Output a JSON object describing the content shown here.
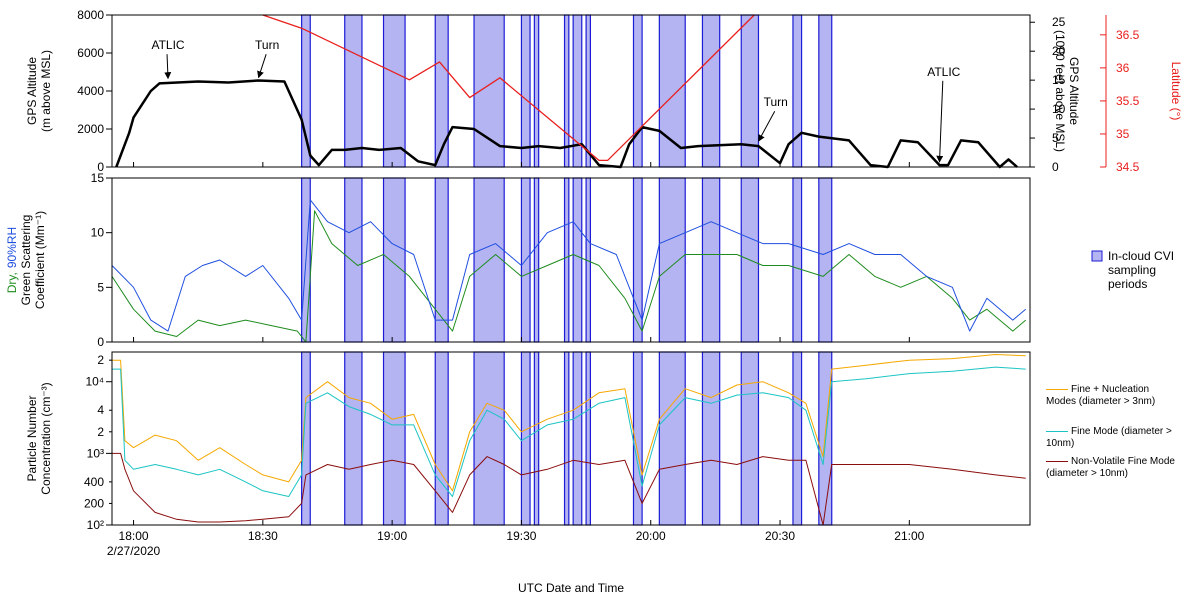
{
  "chart_data": [
    {
      "type": "line",
      "ylabel": [
        "GPS Altitude",
        "(m above MSL)"
      ],
      "ylim": [
        0,
        8000
      ],
      "yticks": [
        0,
        2000,
        4000,
        6000,
        8000
      ],
      "y2label": [
        "GPS Altitude",
        "(1000 feet above MSL)"
      ],
      "y2lim": [
        0,
        26.25
      ],
      "y2ticks": [
        0,
        5,
        10,
        15,
        20,
        25
      ],
      "y3label": "Latitude (°)",
      "y3color": "#e8201e",
      "y3lim": [
        34.5,
        36.8
      ],
      "y3ticks": [
        34.5,
        35.0,
        35.5,
        36.0,
        36.5
      ],
      "series": [
        {
          "name": "GPS Altitude",
          "color": "#000000",
          "x": [
            "17:56",
            "17:59",
            "18:00",
            "18:04",
            "18:06",
            "18:15",
            "18:22",
            "18:29",
            "18:35",
            "18:39",
            "18:41",
            "18:43",
            "18:46",
            "18:49",
            "18:53",
            "18:57",
            "19:02",
            "19:06",
            "19:10",
            "19:12",
            "19:14",
            "19:19",
            "19:25",
            "19:30",
            "19:34",
            "19:39",
            "19:44",
            "19:48",
            "19:53",
            "19:55",
            "19:58",
            "20:02",
            "20:07",
            "20:11",
            "20:21",
            "20:25",
            "20:30",
            "20:32",
            "20:35",
            "20:39",
            "20:46",
            "20:51",
            "20:55",
            "20:58",
            "21:02",
            "21:07",
            "21:09",
            "21:12",
            "21:16",
            "21:21",
            "21:23",
            "21:25"
          ],
          "values": [
            0,
            1800,
            2600,
            4000,
            4400,
            4500,
            4450,
            4550,
            4500,
            2500,
            600,
            100,
            900,
            900,
            1000,
            900,
            1000,
            300,
            100,
            1200,
            2100,
            2000,
            1100,
            1000,
            1100,
            1000,
            1200,
            100,
            0,
            1200,
            2100,
            1900,
            1000,
            1100,
            1200,
            1100,
            200,
            1200,
            1800,
            1600,
            1400,
            100,
            0,
            1400,
            1300,
            100,
            100,
            1400,
            1300,
            0,
            400,
            0
          ]
        },
        {
          "name": "Latitude",
          "color": "#e8201e",
          "axis": "y3",
          "x": [
            "18:30",
            "18:39",
            "19:04",
            "19:11",
            "19:18",
            "19:25",
            "19:48",
            "19:50",
            "20:24"
          ],
          "values": [
            36.8,
            36.6,
            35.82,
            36.09,
            35.55,
            35.85,
            34.6,
            34.6,
            36.8
          ]
        }
      ],
      "annotations": [
        {
          "text": "ATLIC",
          "x": "18:08",
          "y": 4500,
          "text_x": "18:08",
          "text_y": 6200
        },
        {
          "text": "Turn",
          "x": "18:29",
          "y": 4550,
          "text_x": "18:31",
          "text_y": 6200
        },
        {
          "text": "Turn",
          "x": "20:25",
          "y": 1200,
          "text_x": "20:29",
          "text_y": 3200
        },
        {
          "text": "ATLIC",
          "x": "21:07",
          "y": 100,
          "text_x": "21:08",
          "text_y": 4800
        }
      ],
      "shaded_periods": {
        "name": "In-cloud CVI sampling periods",
        "color": "#b4b4f2",
        "edge": "#1c1cd6",
        "periods": [
          [
            "18:39",
            "18:41"
          ],
          [
            "18:49",
            "18:53"
          ],
          [
            "18:58",
            "19:03"
          ],
          [
            "19:10",
            "19:13"
          ],
          [
            "19:19",
            "19:26"
          ],
          [
            "19:30",
            "19:32"
          ],
          [
            "19:33",
            "19:34"
          ],
          [
            "19:40",
            "19:41"
          ],
          [
            "19:42",
            "19:44"
          ],
          [
            "19:45",
            "19:46"
          ],
          [
            "19:56",
            "19:58"
          ],
          [
            "20:02",
            "20:08"
          ],
          [
            "20:12",
            "20:16"
          ],
          [
            "20:21",
            "20:25"
          ],
          [
            "20:33",
            "20:35"
          ],
          [
            "20:39",
            "20:42"
          ]
        ]
      }
    },
    {
      "type": "line",
      "ylabel": [
        "Green Scattering",
        "Coefficient (Mm⁻¹)"
      ],
      "ylim": [
        0,
        15
      ],
      "yticks": [
        0,
        5,
        10,
        15
      ],
      "series": [
        {
          "name": "Dry,",
          "color": "#1e8c1e",
          "x": [
            "17:55",
            "18:00",
            "18:05",
            "18:10",
            "18:15",
            "18:20",
            "18:26",
            "18:32",
            "18:38",
            "18:40",
            "18:42",
            "18:46",
            "18:52",
            "18:58",
            "19:04",
            "19:10",
            "19:14",
            "19:18",
            "19:24",
            "19:30",
            "19:36",
            "19:42",
            "19:48",
            "19:54",
            "19:58",
            "20:02",
            "20:08",
            "20:14",
            "20:20",
            "20:26",
            "20:32",
            "20:40",
            "20:46",
            "20:52",
            "20:58",
            "21:04",
            "21:10",
            "21:14",
            "21:18",
            "21:24",
            "21:27"
          ],
          "values": [
            6,
            3,
            1,
            0.5,
            2,
            1.5,
            2,
            1.5,
            1,
            0,
            12,
            9,
            7,
            8,
            6,
            3,
            1,
            6,
            8,
            6,
            7,
            8,
            7,
            4,
            1,
            6,
            8,
            8,
            8,
            7,
            7,
            6,
            8,
            6,
            5,
            6,
            4,
            2,
            3,
            1,
            2
          ]
        },
        {
          "name": "90%RH",
          "color": "#1f4fe0",
          "x": [
            "17:55",
            "18:00",
            "18:04",
            "18:08",
            "18:12",
            "18:16",
            "18:20",
            "18:26",
            "18:30",
            "18:36",
            "18:39",
            "18:41",
            "18:45",
            "18:50",
            "18:55",
            "19:00",
            "19:05",
            "19:10",
            "19:14",
            "19:18",
            "19:24",
            "19:30",
            "19:36",
            "19:42",
            "19:46",
            "19:52",
            "19:58",
            "20:02",
            "20:08",
            "20:14",
            "20:20",
            "20:26",
            "20:32",
            "20:40",
            "20:46",
            "20:52",
            "20:58",
            "21:04",
            "21:10",
            "21:14",
            "21:18",
            "21:24",
            "21:27"
          ],
          "values": [
            7,
            5,
            2,
            1,
            6,
            7,
            7.5,
            6,
            7,
            4,
            2,
            13,
            11,
            10,
            11,
            9,
            8,
            2,
            2,
            8,
            9,
            7,
            10,
            11,
            9,
            8,
            2,
            9,
            10,
            11,
            10,
            9,
            9,
            8,
            9,
            8,
            8,
            6,
            5,
            1,
            4,
            2,
            3
          ]
        }
      ]
    },
    {
      "type": "line",
      "log_y": true,
      "ylabel": [
        "Particle Number",
        "Concentration (cm⁻³)"
      ],
      "ylim": [
        100,
        26000
      ],
      "yticks": [
        {
          "value": 100,
          "label": "10²"
        },
        200,
        400,
        {
          "value": 1000,
          "label": "10³"
        },
        {
          "value": 2000,
          "label": "2"
        },
        {
          "value": 4000,
          "label": "4"
        },
        {
          "value": 10000,
          "label": "10⁴"
        },
        {
          "value": 20000,
          "label": "2"
        }
      ],
      "xlim": [
        "17:55",
        "21:28"
      ],
      "xticks": [
        "18:00",
        "18:30",
        "19:00",
        "19:30",
        "20:00",
        "20:30",
        "21:00"
      ],
      "date_label": "2/27/2020",
      "xlabel": "UTC Date and Time",
      "x": [
        "17:55",
        "17:57",
        "17:58",
        "18:00",
        "18:05",
        "18:10",
        "18:15",
        "18:20",
        "18:26",
        "18:30",
        "18:36",
        "18:39",
        "18:40",
        "18:45",
        "18:50",
        "18:55",
        "19:00",
        "19:05",
        "19:10",
        "19:14",
        "19:18",
        "19:22",
        "19:26",
        "19:30",
        "19:36",
        "19:42",
        "19:48",
        "19:54",
        "19:58",
        "20:02",
        "20:08",
        "20:14",
        "20:20",
        "20:26",
        "20:32",
        "20:36",
        "20:40",
        "20:42",
        "20:50",
        "21:00",
        "21:10",
        "21:20",
        "21:27"
      ],
      "series": [
        {
          "name": "Fine + Nucleation Modes (diameter > 3nm)",
          "color": "#f5a800",
          "values": [
            20000,
            20000,
            1500,
            1200,
            1800,
            1500,
            800,
            1200,
            700,
            500,
            400,
            800,
            6000,
            10000,
            6000,
            5000,
            3000,
            3500,
            700,
            300,
            2000,
            5000,
            4000,
            2000,
            3000,
            4000,
            7000,
            8000,
            500,
            3000,
            8000,
            6000,
            9000,
            10000,
            7000,
            5000,
            900,
            15000,
            17000,
            20000,
            21000,
            24000,
            23000
          ]
        },
        {
          "name": "Fine Mode (diameter > 10nm)",
          "color": "#1cc4c4",
          "values": [
            15000,
            15000,
            800,
            600,
            700,
            600,
            500,
            600,
            400,
            300,
            250,
            500,
            5000,
            7000,
            4500,
            3500,
            2500,
            2500,
            500,
            250,
            1500,
            4000,
            3000,
            1500,
            2500,
            3000,
            5000,
            6000,
            350,
            2500,
            6000,
            5000,
            6500,
            7000,
            6000,
            4000,
            700,
            10000,
            11000,
            13000,
            14000,
            16000,
            15000
          ]
        },
        {
          "name": "Non-Volatile Fine Mode (diameter > 10nm)",
          "color": "#8b0d0d",
          "values": [
            1000,
            1000,
            600,
            300,
            150,
            120,
            110,
            110,
            115,
            120,
            130,
            200,
            500,
            700,
            600,
            700,
            800,
            700,
            300,
            150,
            500,
            900,
            700,
            500,
            600,
            800,
            700,
            800,
            200,
            600,
            700,
            800,
            700,
            900,
            800,
            800,
            100,
            700,
            700,
            700,
            600,
            500,
            450
          ]
        }
      ]
    }
  ]
}
